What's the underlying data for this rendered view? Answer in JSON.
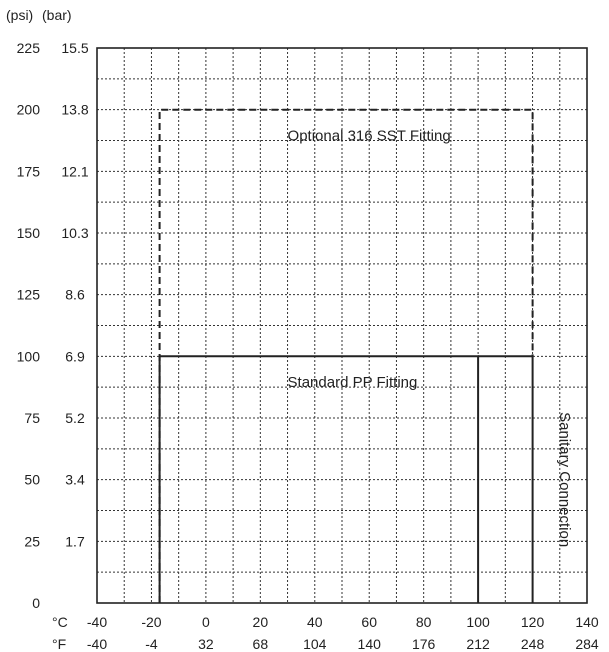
{
  "chart_data": {
    "type": "line",
    "units": {
      "psi": "(psi)",
      "bar": "(bar)",
      "celsius": "°C",
      "fahrenheit": "°F"
    },
    "y_axis": {
      "unit": "psi",
      "range": [
        0,
        225
      ],
      "minor_step": 12.5,
      "ticks": [
        {
          "psi": "0",
          "bar": "",
          "value": 0
        },
        {
          "psi": "25",
          "bar": "1.7",
          "value": 25
        },
        {
          "psi": "50",
          "bar": "3.4",
          "value": 50
        },
        {
          "psi": "75",
          "bar": "5.2",
          "value": 75
        },
        {
          "psi": "100",
          "bar": "6.9",
          "value": 100
        },
        {
          "psi": "125",
          "bar": "8.6",
          "value": 125
        },
        {
          "psi": "150",
          "bar": "10.3",
          "value": 150
        },
        {
          "psi": "175",
          "bar": "12.1",
          "value": 175
        },
        {
          "psi": "200",
          "bar": "13.8",
          "value": 200
        },
        {
          "psi": "225",
          "bar": "15.5",
          "value": 225
        }
      ]
    },
    "x_axis": {
      "unit": "celsius",
      "range": [
        -40,
        140
      ],
      "minor_step": 10,
      "ticks": [
        {
          "c": "-40",
          "f": "-40",
          "value": -40
        },
        {
          "c": "-20",
          "f": "-4",
          "value": -20
        },
        {
          "c": "0",
          "f": "32",
          "value": 0
        },
        {
          "c": "20",
          "f": "68",
          "value": 20
        },
        {
          "c": "40",
          "f": "104",
          "value": 40
        },
        {
          "c": "60",
          "f": "140",
          "value": 60
        },
        {
          "c": "80",
          "f": "176",
          "value": 80
        },
        {
          "c": "100",
          "f": "212",
          "value": 100
        },
        {
          "c": "120",
          "f": "248",
          "value": 120
        },
        {
          "c": "140",
          "f": "284",
          "value": 140
        }
      ]
    },
    "grid": true,
    "series": [
      {
        "name": "Optional 316 SST Fitting",
        "style": "dashed",
        "color": "#222222",
        "x": [
          -17,
          -17,
          120,
          120
        ],
        "y": [
          0,
          200,
          200,
          100
        ]
      },
      {
        "name": "Standard PP Fitting",
        "style": "solid",
        "color": "#222222",
        "x": [
          -17,
          -17,
          100,
          100
        ],
        "y": [
          0,
          100,
          100,
          0
        ]
      },
      {
        "name": "Sanitary Connection",
        "style": "solid",
        "color": "#222222",
        "x": [
          100,
          120,
          120
        ],
        "y": [
          100,
          100,
          0
        ]
      }
    ],
    "annotations": [
      {
        "text": "Optional 316 SST Fitting",
        "x": 30,
        "y": 187.5
      },
      {
        "text": "Standard PP Fitting",
        "x": 30,
        "y": 87.5
      },
      {
        "text": "Sanitary Connection",
        "x": 130,
        "y": 50,
        "rotation": "vertical"
      }
    ]
  }
}
